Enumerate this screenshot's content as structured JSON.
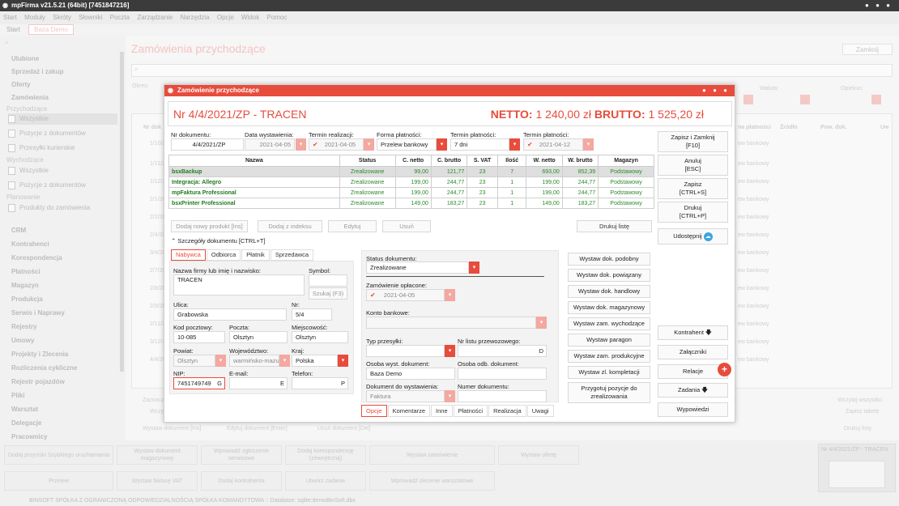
{
  "window": {
    "title": "mpFirma v21.5.21 (64bit) [7451847216]"
  },
  "menu": [
    "Start",
    "Moduły",
    "Skróty",
    "Słowniki",
    "Poczta",
    "Zarządzanie",
    "Narzędzia",
    "Opcje",
    "Widok",
    "Pomoc"
  ],
  "tabs": {
    "start": "Start",
    "active": "Baza Demo"
  },
  "sidebar": {
    "groups": [
      "Ulubione",
      "Sprzedaż i zakup",
      "Oferty",
      "Zamówienia"
    ],
    "sub_przychodzace": "Przychodzące",
    "links1": [
      "Wszystkie",
      "Pozycje z dokumentów",
      "Przesyłki kurierskie"
    ],
    "sub_wychodzace": "Wychodzące",
    "links2": [
      "Wszystkie",
      "Pozycje z dokumentów"
    ],
    "sub_planowanie": "Planowanie",
    "links3": [
      "Produkty do zamówienia"
    ],
    "modules": [
      "CRM",
      "Kontrahenci",
      "Korespondencja",
      "Płatności",
      "Magazyn",
      "Produkcja",
      "Serwis i Naprawy",
      "Rejestry",
      "Umowy",
      "Projekty i Zlecenia",
      "Rozliczenia cykliczne",
      "Rejestr pojazdów",
      "Pliki",
      "Warsztat",
      "Delegacje",
      "Pracownicy"
    ]
  },
  "main": {
    "page_title": "Zamówienia przychodzące",
    "close_label": "Zamknij",
    "okres_label": "Okres:",
    "waluta_label": "Waluta:",
    "opiekun_label": "Opiekun:",
    "bg_cols": [
      "Nr dok",
      "na płatności",
      "Źródło",
      "Pow. dok.",
      "Uw"
    ],
    "bg_rows": [
      "1/10/2",
      "1/11/2",
      "1/12/2",
      "2/1/20",
      "2/2/20",
      "2/4/20",
      "3/4/20",
      "2/7/20",
      "2/8/20",
      "2/9/20",
      "2/11/2",
      "3/12/2",
      "4/4/20"
    ],
    "bg_right": "ew bankowy",
    "bottom_left": [
      "Zaznacz",
      "Wczy"
    ],
    "bottom_right": [
      "Wczytaj wszystko",
      "Zapisz tabelę"
    ],
    "footer_buttons": [
      "Wystaw dokument [Ins]",
      "Edytuj dokument [Enter]",
      "Usuń dokument [Del]"
    ],
    "druk_listy": "Drukuj listy"
  },
  "quick": [
    "Dodaj przyciski Szybkiego uruchamiania",
    "Wystaw dokument magazynowy",
    "Wprowadź zgłoszenie serwisowe",
    "Dodaj korespondencję (zewnętrzną)",
    "Wystaw zamówienie",
    "Wystaw ofertę",
    "Przelew",
    "Wystaw fakturę VAT",
    "Dodaj kontrahenta",
    "Utwórz zadanie",
    "Wprowadź zlecenie warsztatowe"
  ],
  "mini_preview": "Nr 4/4/2021/ZP - TRACEN",
  "status_bar": "BINSOFT SPÓŁKA Z OGRANICZONĄ ODPOWIEDZIALNOŚCIĄ SPÓŁKA KOMANDYTOWA :: Database: sqlite:demoBinSoft.dbx",
  "dialog": {
    "title": "Zamówienie przychodzące",
    "doc_number": "Nr 4/4/2021/ZP - TRACEN",
    "netto_label": "NETTO:",
    "netto_value": "1 240,00 zł",
    "brutto_label": "BRUTTO:",
    "brutto_value": "1 525,20 zł",
    "fields": {
      "nr_label": "Nr dokumentu:",
      "nr_value": "4/4/2021/ZP",
      "data_label": "Data wystawienia:",
      "data_value": "2021-04-05",
      "termin_real_label": "Termin realizacji:",
      "termin_real_value": "2021-04-05",
      "forma_label": "Forma płatności:",
      "forma_value": "Przelew bankowy",
      "termin_plat_label": "Termin płatności:",
      "termin_plat_value": "7 dni",
      "termin_plat2_label": "Termin płatności:",
      "termin_plat2_value": "2021-04-12"
    },
    "table": {
      "headers": [
        "Nazwa",
        "Status",
        "C. netto",
        "C. brutto",
        "S. VAT",
        "Ilość",
        "W. netto",
        "W. brutto",
        "Magazyn"
      ],
      "rows": [
        [
          "bsxBackup",
          "Zrealizowane",
          "99,00",
          "121,77",
          "23",
          "7",
          "693,00",
          "852,39",
          "Podstawowy"
        ],
        [
          "Integracja: Allegro",
          "Zrealizowane",
          "199,00",
          "244,77",
          "23",
          "1",
          "199,00",
          "244,77",
          "Podstawowy"
        ],
        [
          "mpFaktura Professional",
          "Zrealizowane",
          "199,00",
          "244,77",
          "23",
          "1",
          "199,00",
          "244,77",
          "Podstawowy"
        ],
        [
          "bsxPrinter Professional",
          "Zrealizowane",
          "149,00",
          "183,27",
          "23",
          "1",
          "149,00",
          "183,27",
          "Podstawowy"
        ]
      ]
    },
    "table_buttons": {
      "add_new": "Dodaj nowy produkt [Ins]",
      "add_index": "Dodaj z indeksu",
      "edit": "Edytuj",
      "delete": "Usuń",
      "print": "Drukuj listę"
    },
    "details_toggle": "Szczegóły dokumentu [CTRL+T]",
    "party_tabs": [
      "Nabywca",
      "Odbiorca",
      "Płatnik",
      "Sprzedawca"
    ],
    "party": {
      "name_label": "Nazwa firmy lub imię i nazwisko:",
      "name_value": "TRACEN",
      "symbol_label": "Symbol:",
      "search_btn": "Szukaj (F3)",
      "ulica_label": "Ulica:",
      "ulica_value": "Grabowska",
      "nr_label": "Nr:",
      "nr_value": "5/4",
      "kod_label": "Kod pocztowy:",
      "kod_value": "10-085",
      "poczta_label": "Poczta:",
      "poczta_value": "Olsztyn",
      "miejsc_label": "Miejscowość:",
      "miejsc_value": "Olsztyn",
      "powiat_label": "Powiat:",
      "powiat_value": "Olsztyn",
      "woj_label": "Województwo:",
      "woj_value": "warmińsko-mazu",
      "kraj_label": "Kraj:",
      "kraj_value": "Polska",
      "nip_label": "NIP:",
      "nip_value": "7451749749",
      "email_label": "E-mail:",
      "telefon_label": "Telefon:",
      "g_mark": "G",
      "e_mark": "E",
      "p_mark": "P"
    },
    "status": {
      "status_label": "Status dokumentu:",
      "status_value": "Zrealizowane",
      "oplacone_label": "Zamówienie opłacone:",
      "oplacone_value": "2021-04-05",
      "konto_label": "Konto bankowe:",
      "typ_label": "Typ przesyłki:",
      "nr_listu_label": "Nr listu przewozowego:",
      "d_mark": "D",
      "osoba_wyst_label": "Osoba wyst. dokument:",
      "osoba_wyst_value": "Baza Demo",
      "osoba_odb_label": "Osoba odb. dokument:",
      "dok_do_wyst_label": "Dokument do wystawienia:",
      "dok_do_wyst_value": "Faktura",
      "numer_dok_label": "Numer dokumentu:"
    },
    "action_buttons": [
      "Wystaw dok. podobny",
      "Wystaw dok. powiązany",
      "Wystaw dok. handlowy",
      "Wystaw dok. magazynowy",
      "Wystaw zam. wychodzące",
      "Wystaw paragon",
      "Wystaw zam. produkcyjne",
      "Wystaw zl. kompletacji",
      "Przygotuj pozycje do zrealizowania"
    ],
    "bottom_tabs": [
      "Opcje",
      "Komentarze",
      "Inne",
      "Płatności",
      "Realizacja",
      "Uwagi"
    ],
    "side_buttons": {
      "save_close": "Zapisz i Zamknij",
      "save_close_key": "[F10]",
      "cancel": "Anuluj",
      "cancel_key": "[ESC]",
      "save": "Zapisz",
      "save_key": "[CTRL+S]",
      "print": "Drukuj",
      "print_key": "[CTRL+P]",
      "share": "Udostępnij",
      "kontrahent": "Kontrahent",
      "zalaczniki": "Załączniki",
      "relacje": "Relacje",
      "zadania": "Zadania",
      "wypowiedzi": "Wypowiedzi"
    }
  }
}
